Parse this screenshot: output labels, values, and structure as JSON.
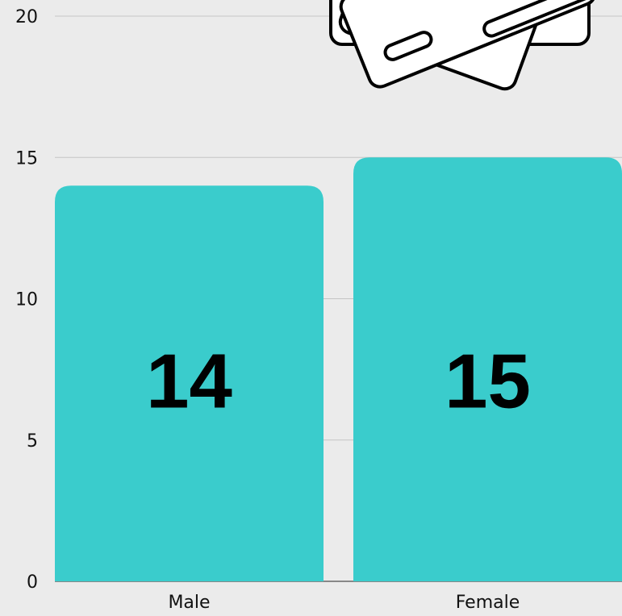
{
  "chart_data": {
    "type": "bar",
    "categories": [
      "Male",
      "Female"
    ],
    "values": [
      14,
      15
    ],
    "color": "#3acccc",
    "ylim": [
      0,
      20
    ],
    "yticks": [
      0,
      5,
      10,
      15,
      20
    ],
    "grid": true
  }
}
